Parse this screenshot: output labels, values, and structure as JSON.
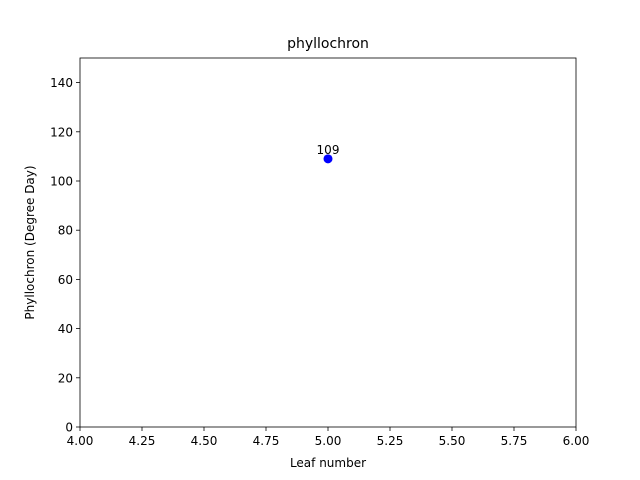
{
  "chart_data": {
    "type": "scatter",
    "title": "phyllochron",
    "xlabel": "Leaf number",
    "ylabel": "Phyllochron (Degree Day)",
    "xlim": [
      4.0,
      6.0
    ],
    "ylim": [
      0,
      150
    ],
    "xticks": [
      "4.00",
      "4.25",
      "4.50",
      "4.75",
      "5.00",
      "5.25",
      "5.50",
      "5.75",
      "6.00"
    ],
    "yticks": [
      "0",
      "20",
      "40",
      "60",
      "80",
      "100",
      "120",
      "140"
    ],
    "grid": false,
    "series": [
      {
        "color": "#0000ff",
        "points": [
          {
            "x": 5.0,
            "y": 109,
            "label": "109"
          }
        ]
      }
    ]
  }
}
